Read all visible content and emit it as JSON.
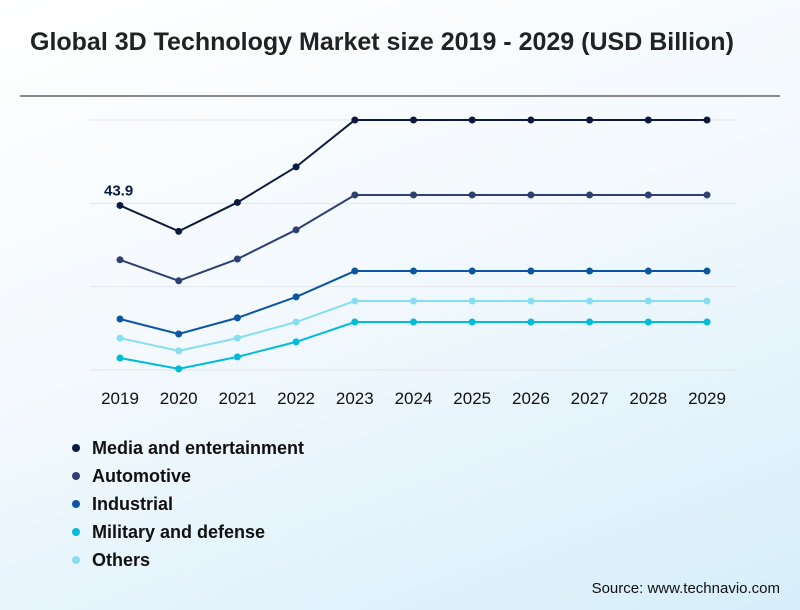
{
  "title": "Global 3D Technology Market size 2019 - 2029 (USD Billion)",
  "source": "Source: www.technavio.com",
  "chart_data": {
    "type": "line",
    "title": "Global 3D Technology Market size 2019 - 2029 (USD Billion)",
    "categories": [
      "2019",
      "2020",
      "2021",
      "2022",
      "2023",
      "2024",
      "2025",
      "2026",
      "2027",
      "2028",
      "2029"
    ],
    "ylim": [
      0,
      66.7
    ],
    "grid": true,
    "legend_position": "bottom-left",
    "series": [
      {
        "name": "Media and entertainment",
        "color": "#0b1a3e",
        "values": [
          43.9,
          37.0,
          44.7,
          54.2,
          66.7,
          66.7,
          66.7,
          66.7,
          66.7,
          66.7,
          66.7
        ]
      },
      {
        "name": "Automotive",
        "color": "#2e3f73",
        "values": [
          29.4,
          23.8,
          29.6,
          37.4,
          46.7,
          46.7,
          46.7,
          46.7,
          46.7,
          46.7,
          46.7
        ]
      },
      {
        "name": "Industrial",
        "color": "#0a56a5",
        "values": [
          13.6,
          9.6,
          13.9,
          19.5,
          26.4,
          26.4,
          26.4,
          26.4,
          26.4,
          26.4,
          26.4
        ]
      },
      {
        "name": "Military and defense",
        "color": "#00bcd8",
        "values": [
          3.2,
          0.3,
          3.5,
          7.5,
          12.8,
          12.8,
          12.8,
          12.8,
          12.8,
          12.8,
          12.8
        ]
      },
      {
        "name": "Others",
        "color": "#86def0",
        "values": [
          8.5,
          5.1,
          8.5,
          12.8,
          18.4,
          18.4,
          18.4,
          18.4,
          18.4,
          18.4,
          18.4
        ]
      }
    ],
    "annotations": [
      {
        "series": "Media and entertainment",
        "x": "2019",
        "text": "43.9"
      }
    ]
  }
}
